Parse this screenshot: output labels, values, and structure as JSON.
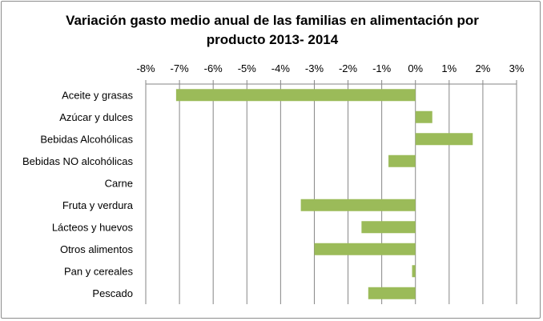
{
  "chart_data": {
    "type": "bar",
    "orientation": "horizontal",
    "title": "Variación gasto medio anual de las familias en alimentación por producto 2013- 2014",
    "categories": [
      "Aceite y grasas",
      "Azúcar y dulces",
      "Bebidas Alcohólicas",
      "Bebidas NO alcohólicas",
      "Carne",
      "Fruta y verdura",
      "Lácteos y huevos",
      "Otros alimentos",
      "Pan y cereales",
      "Pescado"
    ],
    "values": [
      -7.1,
      0.5,
      1.7,
      -0.8,
      0.0,
      -3.4,
      -1.6,
      -3.0,
      -0.1,
      -1.4
    ],
    "xlim": [
      -8,
      3
    ],
    "x_ticks": [
      -8,
      -7,
      -6,
      -5,
      -4,
      -3,
      -2,
      -1,
      0,
      1,
      2,
      3
    ],
    "x_tick_labels": [
      "-8%",
      "-7%",
      "-6%",
      "-5%",
      "-4%",
      "-3%",
      "-2%",
      "-1%",
      "0%",
      "1%",
      "2%",
      "3%"
    ],
    "x_axis_position": "top",
    "grid": "vertical",
    "legend": "none",
    "bar_color": "#9bbb59",
    "grid_color": "#868686"
  }
}
